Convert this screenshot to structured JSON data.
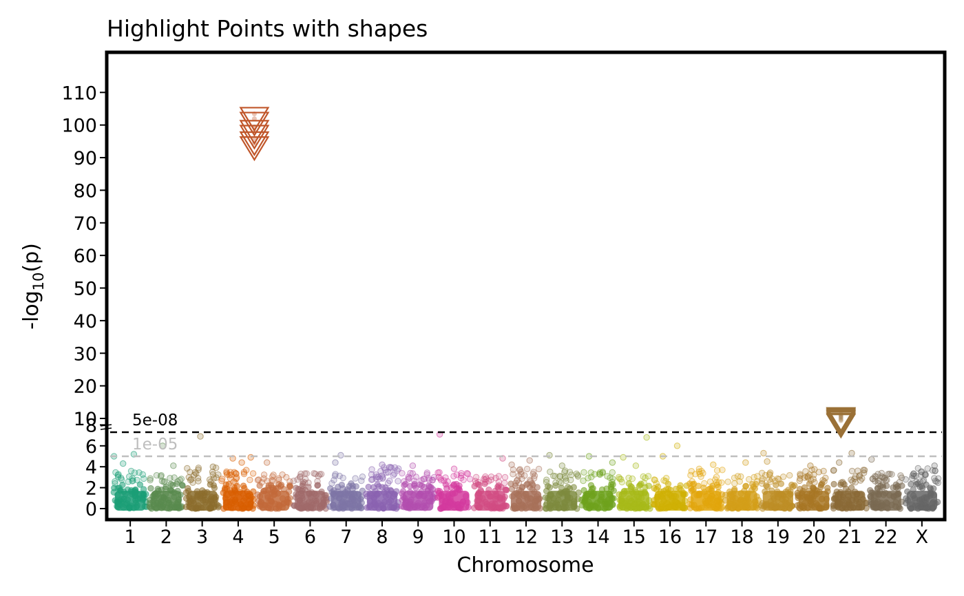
{
  "chart_data": {
    "type": "scatter",
    "title": "Highlight Points with shapes",
    "xlabel": "Chromosome",
    "ylabel_main": "-log",
    "ylabel_sub": "10",
    "ylabel_end": "(p)",
    "axis_break": "lower region 0–8 (2-unit ticks), upper region 10–110 (10-unit ticks)",
    "y_ticks_lower": [
      0,
      2,
      4,
      6,
      8
    ],
    "y_ticks_upper": [
      10,
      20,
      30,
      40,
      50,
      60,
      70,
      80,
      90,
      100,
      110
    ],
    "categories": [
      "1",
      "2",
      "3",
      "4",
      "5",
      "6",
      "7",
      "8",
      "9",
      "10",
      "11",
      "12",
      "13",
      "14",
      "15",
      "16",
      "17",
      "18",
      "19",
      "20",
      "21",
      "22",
      "X"
    ],
    "colors": [
      "#1B9E77",
      "#5A8A4E",
      "#8C6E2E",
      "#D95F02",
      "#C26A3A",
      "#A06A6A",
      "#7D74A5",
      "#8A63B0",
      "#B24FAE",
      "#D43B9E",
      "#D14C84",
      "#A8715A",
      "#7D8B3E",
      "#6FA31E",
      "#A8BA1A",
      "#D0B005",
      "#E2A60C",
      "#D39F1A",
      "#BE8E26",
      "#A87725",
      "#8A6A36",
      "#7A6A52",
      "#666666"
    ],
    "baseline_max": [
      3.6,
      3.2,
      3.9,
      3.7,
      3.3,
      3.4,
      3.3,
      4.0,
      3.6,
      3.7,
      3.1,
      3.8,
      3.7,
      3.5,
      3.2,
      3.2,
      3.8,
      3.1,
      3.6,
      3.8,
      3.7,
      3.4,
      3.9
    ],
    "outliers": [
      {
        "chr": "1",
        "y": 5.2,
        "off": 0.6
      },
      {
        "chr": "1",
        "y": 4.3,
        "off": 0.3
      },
      {
        "chr": "1",
        "y": 5.0,
        "off": 0.05
      },
      {
        "chr": "2",
        "y": 6.0,
        "off": 0.4
      },
      {
        "chr": "2",
        "y": 4.1,
        "off": 0.7
      },
      {
        "chr": "3",
        "y": 6.9,
        "off": 0.45
      },
      {
        "chr": "3",
        "y": 4.0,
        "off": 0.8
      },
      {
        "chr": "4",
        "y": 4.8,
        "off": 0.35
      },
      {
        "chr": "4",
        "y": 4.9,
        "off": 0.85
      },
      {
        "chr": "4",
        "y": 4.4,
        "off": 0.6
      },
      {
        "chr": "5",
        "y": 4.4,
        "off": 0.3
      },
      {
        "chr": "7",
        "y": 5.1,
        "off": 0.35
      },
      {
        "chr": "7",
        "y": 4.4,
        "off": 0.2
      },
      {
        "chr": "8",
        "y": 4.2,
        "off": 0.5
      },
      {
        "chr": "9",
        "y": 4.1,
        "off": 0.35
      },
      {
        "chr": "10",
        "y": 7.1,
        "off": 0.1
      },
      {
        "chr": "10",
        "y": 3.8,
        "off": 0.5
      },
      {
        "chr": "11",
        "y": 4.8,
        "off": 0.85
      },
      {
        "chr": "12",
        "y": 4.6,
        "off": 0.6
      },
      {
        "chr": "12",
        "y": 4.2,
        "off": 0.1
      },
      {
        "chr": "13",
        "y": 5.1,
        "off": 0.15
      },
      {
        "chr": "13",
        "y": 4.1,
        "off": 0.5
      },
      {
        "chr": "14",
        "y": 5.0,
        "off": 0.25
      },
      {
        "chr": "14",
        "y": 4.4,
        "off": 0.9
      },
      {
        "chr": "15",
        "y": 6.8,
        "off": 0.85
      },
      {
        "chr": "15",
        "y": 4.9,
        "off": 0.2
      },
      {
        "chr": "15",
        "y": 4.1,
        "off": 0.55
      },
      {
        "chr": "16",
        "y": 6.0,
        "off": 0.7
      },
      {
        "chr": "16",
        "y": 5.0,
        "off": 0.3
      },
      {
        "chr": "17",
        "y": 4.2,
        "off": 0.7
      },
      {
        "chr": "18",
        "y": 4.4,
        "off": 0.6
      },
      {
        "chr": "19",
        "y": 5.3,
        "off": 0.1
      },
      {
        "chr": "19",
        "y": 4.5,
        "off": 0.2
      },
      {
        "chr": "20",
        "y": 4.1,
        "off": 0.4
      },
      {
        "chr": "21",
        "y": 5.3,
        "off": 0.55
      },
      {
        "chr": "21",
        "y": 4.4,
        "off": 0.2
      },
      {
        "chr": "22",
        "y": 4.7,
        "off": 0.1
      },
      {
        "chr": "X",
        "y": 4.1,
        "off": 0.85
      }
    ],
    "highlight_groups": [
      {
        "chr": "4",
        "off": 0.95,
        "color": "#C0562A",
        "points": [
          103,
          101.5,
          99,
          97.5,
          95.5,
          94
        ]
      },
      {
        "chr": "21",
        "off": 0.25,
        "color": "#9A7036",
        "points": [
          10.9,
          10.5,
          10.1,
          9.8,
          9.3,
          8.9
        ]
      }
    ],
    "threshold_lines": [
      {
        "label": "5e-08",
        "y": 7.3,
        "style": "dashed",
        "color": "#000000"
      },
      {
        "label": "1e-05",
        "y": 5.0,
        "style": "dashed",
        "color": "#BEBEBE"
      }
    ],
    "grid": false,
    "legend": "none"
  }
}
